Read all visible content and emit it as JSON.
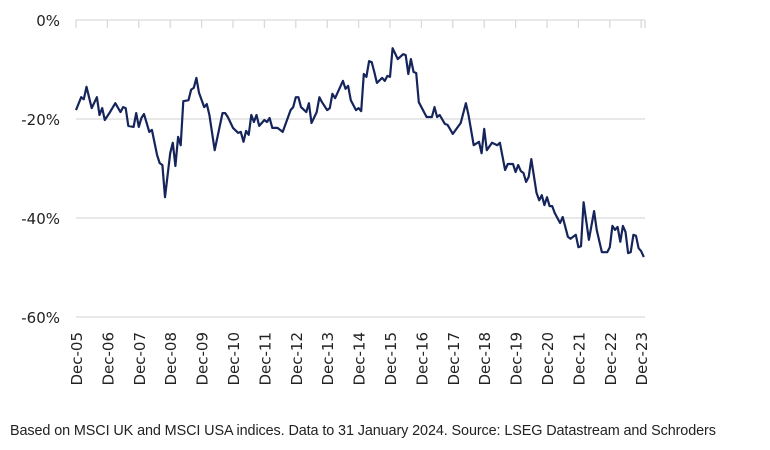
{
  "chart_data": {
    "type": "line",
    "title": "",
    "xlabel": "",
    "ylabel": "",
    "ylim": [
      -60,
      0
    ],
    "y_ticks": [
      "0%",
      "-20%",
      "-40%",
      "-60%"
    ],
    "y_tick_values": [
      0,
      -20,
      -40,
      -60
    ],
    "x_ticks": [
      "Dec-05",
      "Dec-06",
      "Dec-07",
      "Dec-08",
      "Dec-09",
      "Dec-10",
      "Dec-11",
      "Dec-12",
      "Dec-13",
      "Dec-14",
      "Dec-15",
      "Dec-16",
      "Dec-17",
      "Dec-18",
      "Dec-19",
      "Dec-20",
      "Dec-21",
      "Dec-22",
      "Dec-23"
    ],
    "xlim": [
      "2005-12",
      "2024-01"
    ],
    "grid": "horizontal",
    "line_color": "#15245a",
    "grid_color": "#d9d9d9",
    "series": [
      {
        "points": [
          [
            "2005-12",
            -18.2
          ],
          [
            "2006-02",
            -15.6
          ],
          [
            "2006-03",
            -16.0
          ],
          [
            "2006-04",
            -13.5
          ],
          [
            "2006-06",
            -17.8
          ],
          [
            "2006-08",
            -15.6
          ],
          [
            "2006-09",
            -19.2
          ],
          [
            "2006-10",
            -17.8
          ],
          [
            "2006-11",
            -20.2
          ],
          [
            "2007-01",
            -18.6
          ],
          [
            "2007-03",
            -16.8
          ],
          [
            "2007-05",
            -18.6
          ],
          [
            "2007-06",
            -17.6
          ],
          [
            "2007-07",
            -17.8
          ],
          [
            "2007-08",
            -21.4
          ],
          [
            "2007-10",
            -21.6
          ],
          [
            "2007-11",
            -18.8
          ],
          [
            "2007-12",
            -21.6
          ],
          [
            "2008-01",
            -19.8
          ],
          [
            "2008-02",
            -19.0
          ],
          [
            "2008-04",
            -22.6
          ],
          [
            "2008-05",
            -22.2
          ],
          [
            "2008-07",
            -27.3
          ],
          [
            "2008-08",
            -28.9
          ],
          [
            "2008-09",
            -29.3
          ],
          [
            "2008-10",
            -35.8
          ],
          [
            "2008-12",
            -26.9
          ],
          [
            "2009-01",
            -24.8
          ],
          [
            "2009-02",
            -29.5
          ],
          [
            "2009-03",
            -23.6
          ],
          [
            "2009-04",
            -25.3
          ],
          [
            "2009-05",
            -16.4
          ],
          [
            "2009-07",
            -16.2
          ],
          [
            "2009-08",
            -14.1
          ],
          [
            "2009-09",
            -13.7
          ],
          [
            "2009-10",
            -11.7
          ],
          [
            "2009-11",
            -14.7
          ],
          [
            "2010-01",
            -17.6
          ],
          [
            "2010-02",
            -17.0
          ],
          [
            "2010-03",
            -19.2
          ],
          [
            "2010-05",
            -26.3
          ],
          [
            "2010-08",
            -18.8
          ],
          [
            "2010-09",
            -18.8
          ],
          [
            "2010-10",
            -19.6
          ],
          [
            "2010-12",
            -21.8
          ],
          [
            "2011-02",
            -22.8
          ],
          [
            "2011-03",
            -22.6
          ],
          [
            "2011-04",
            -24.6
          ],
          [
            "2011-05",
            -22.4
          ],
          [
            "2011-06",
            -23.2
          ],
          [
            "2011-07",
            -19.2
          ],
          [
            "2011-08",
            -20.6
          ],
          [
            "2011-09",
            -19.2
          ],
          [
            "2011-10",
            -21.4
          ],
          [
            "2011-12",
            -20.2
          ],
          [
            "2012-01",
            -20.6
          ],
          [
            "2012-02",
            -19.8
          ],
          [
            "2012-03",
            -21.8
          ],
          [
            "2012-05",
            -21.8
          ],
          [
            "2012-07",
            -22.6
          ],
          [
            "2012-10",
            -18.2
          ],
          [
            "2012-11",
            -17.6
          ],
          [
            "2012-12",
            -15.6
          ],
          [
            "2013-01",
            -15.6
          ],
          [
            "2013-02",
            -17.6
          ],
          [
            "2013-04",
            -18.6
          ],
          [
            "2013-05",
            -16.8
          ],
          [
            "2013-06",
            -20.8
          ],
          [
            "2013-08",
            -18.6
          ],
          [
            "2013-09",
            -15.6
          ],
          [
            "2013-10",
            -16.6
          ],
          [
            "2013-12",
            -18.2
          ],
          [
            "2014-01",
            -17.8
          ],
          [
            "2014-02",
            -14.9
          ],
          [
            "2014-03",
            -15.8
          ],
          [
            "2014-06",
            -12.3
          ],
          [
            "2014-07",
            -13.9
          ],
          [
            "2014-08",
            -13.3
          ],
          [
            "2014-09",
            -16.2
          ],
          [
            "2014-11",
            -18.2
          ],
          [
            "2014-12",
            -17.8
          ],
          [
            "2015-01",
            -18.4
          ],
          [
            "2015-02",
            -10.9
          ],
          [
            "2015-03",
            -11.5
          ],
          [
            "2015-04",
            -8.3
          ],
          [
            "2015-05",
            -8.5
          ],
          [
            "2015-06",
            -10.5
          ],
          [
            "2015-07",
            -12.7
          ],
          [
            "2015-09",
            -11.7
          ],
          [
            "2015-10",
            -12.3
          ],
          [
            "2015-11",
            -11.3
          ],
          [
            "2015-12",
            -11.5
          ],
          [
            "2016-01",
            -5.7
          ],
          [
            "2016-03",
            -7.9
          ],
          [
            "2016-05",
            -6.9
          ],
          [
            "2016-06",
            -7.1
          ],
          [
            "2016-07",
            -10.9
          ],
          [
            "2016-08",
            -7.9
          ],
          [
            "2016-09",
            -10.5
          ],
          [
            "2016-10",
            -10.7
          ],
          [
            "2016-11",
            -16.6
          ],
          [
            "2017-02",
            -19.6
          ],
          [
            "2017-04",
            -19.6
          ],
          [
            "2017-05",
            -17.6
          ],
          [
            "2017-06",
            -19.6
          ],
          [
            "2017-07",
            -19.2
          ],
          [
            "2017-09",
            -21.0
          ],
          [
            "2017-10",
            -21.2
          ],
          [
            "2017-12",
            -23.0
          ],
          [
            "2018-03",
            -20.8
          ],
          [
            "2018-05",
            -16.8
          ],
          [
            "2018-06",
            -19.2
          ],
          [
            "2018-08",
            -25.3
          ],
          [
            "2018-10",
            -24.6
          ],
          [
            "2018-11",
            -26.9
          ],
          [
            "2018-12",
            -22.0
          ],
          [
            "2019-01",
            -26.3
          ],
          [
            "2019-03",
            -24.8
          ],
          [
            "2019-05",
            -25.3
          ],
          [
            "2019-06",
            -24.8
          ],
          [
            "2019-08",
            -30.3
          ],
          [
            "2019-09",
            -29.1
          ],
          [
            "2019-11",
            -29.1
          ],
          [
            "2019-12",
            -30.7
          ],
          [
            "2020-01",
            -29.3
          ],
          [
            "2020-02",
            -30.5
          ],
          [
            "2020-03",
            -30.9
          ],
          [
            "2020-04",
            -32.7
          ],
          [
            "2020-05",
            -31.7
          ],
          [
            "2020-06",
            -28.1
          ],
          [
            "2020-08",
            -34.9
          ],
          [
            "2020-09",
            -36.4
          ],
          [
            "2020-10",
            -35.4
          ],
          [
            "2020-11",
            -37.4
          ],
          [
            "2020-12",
            -35.8
          ],
          [
            "2021-01",
            -37.6
          ],
          [
            "2021-02",
            -37.6
          ],
          [
            "2021-03",
            -39.0
          ],
          [
            "2021-05",
            -41.0
          ],
          [
            "2021-06",
            -39.8
          ],
          [
            "2021-08",
            -43.8
          ],
          [
            "2021-09",
            -44.2
          ],
          [
            "2021-11",
            -43.4
          ],
          [
            "2021-12",
            -45.9
          ],
          [
            "2022-01",
            -45.7
          ],
          [
            "2022-02",
            -36.8
          ],
          [
            "2022-04",
            -44.4
          ],
          [
            "2022-06",
            -38.6
          ],
          [
            "2022-07",
            -42.4
          ],
          [
            "2022-09",
            -46.9
          ],
          [
            "2022-11",
            -46.9
          ],
          [
            "2022-12",
            -45.9
          ],
          [
            "2023-01",
            -41.6
          ],
          [
            "2023-02",
            -42.4
          ],
          [
            "2023-03",
            -41.8
          ],
          [
            "2023-04",
            -44.8
          ],
          [
            "2023-05",
            -41.6
          ],
          [
            "2023-06",
            -42.8
          ],
          [
            "2023-07",
            -47.1
          ],
          [
            "2023-08",
            -46.9
          ],
          [
            "2023-09",
            -43.4
          ],
          [
            "2023-10",
            -43.6
          ],
          [
            "2023-11",
            -46.1
          ],
          [
            "2023-12",
            -46.7
          ],
          [
            "2024-01",
            -47.9
          ]
        ]
      }
    ]
  },
  "caption": "Based on MSCI UK and MSCI USA indices. Data to 31 January 2024. Source: LSEG Datastream and Schroders"
}
